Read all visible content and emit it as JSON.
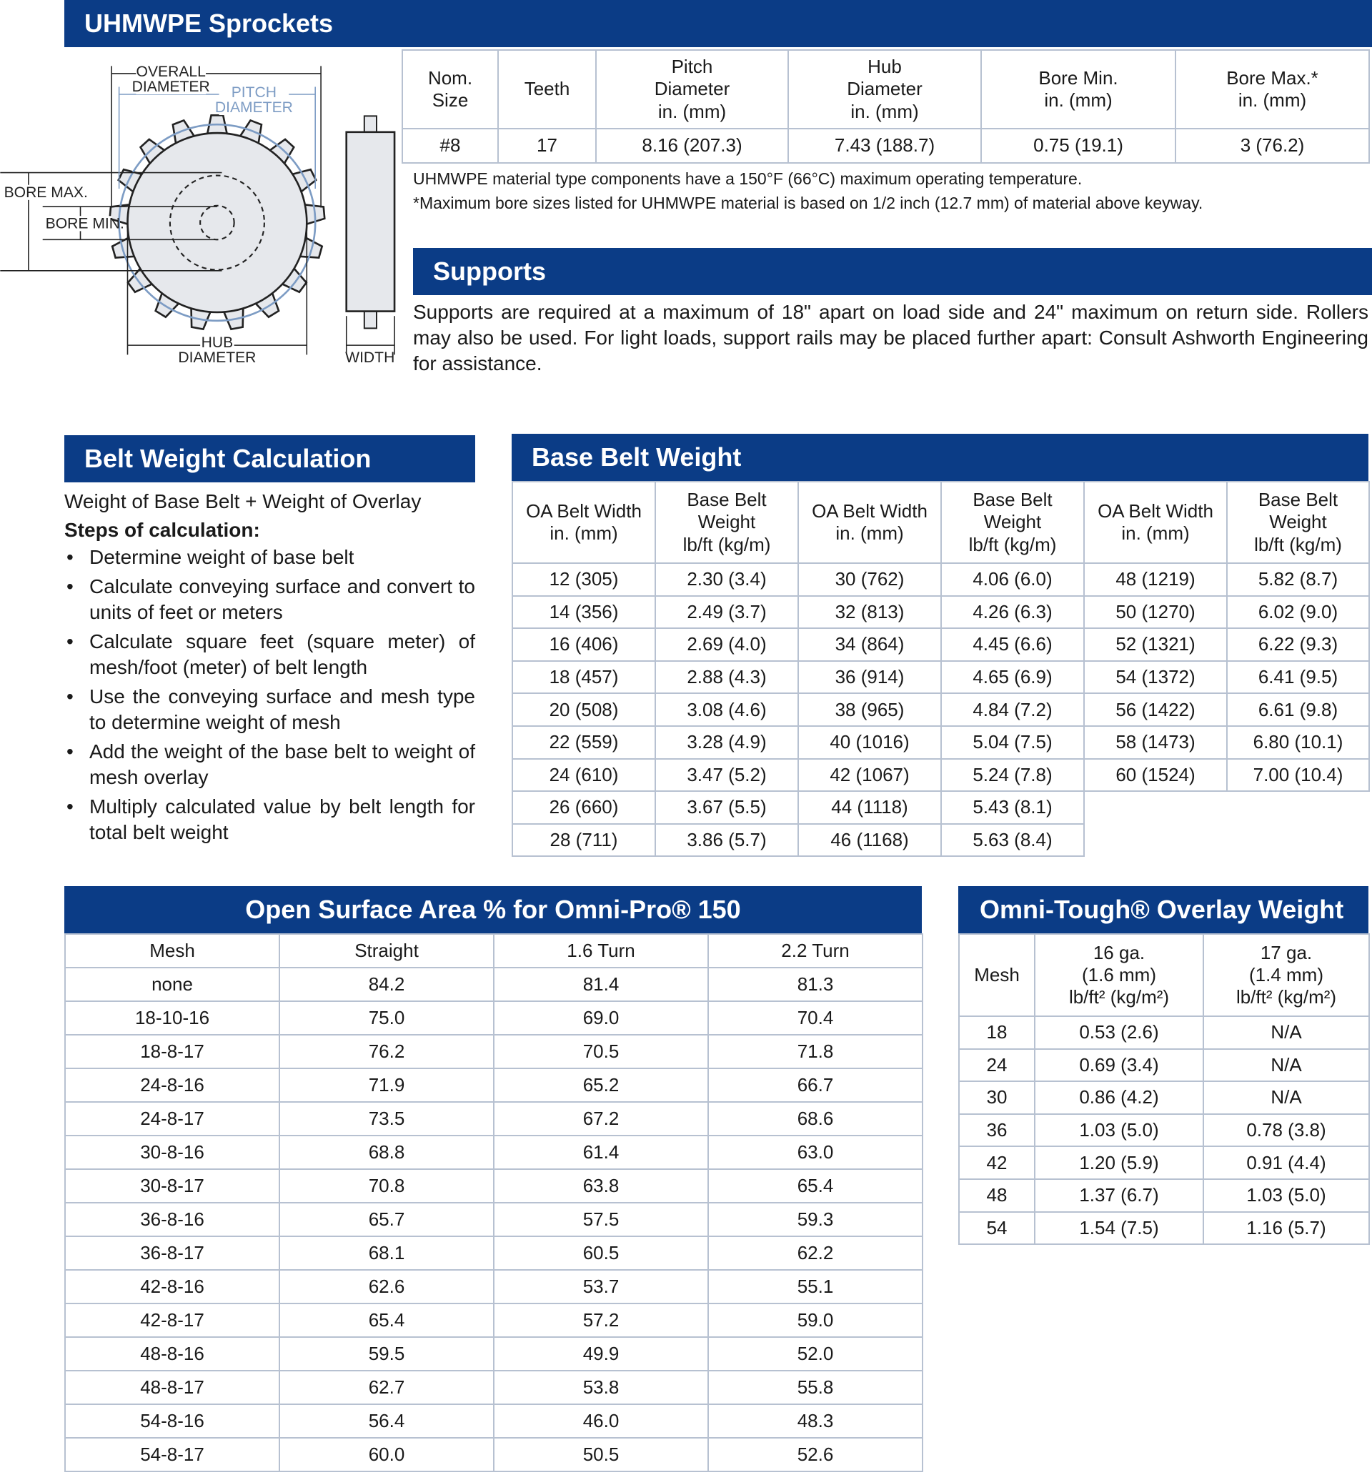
{
  "sprockets": {
    "title": "UHMWPE Sprockets",
    "diagram": {
      "overall_diameter": [
        "OVERALL",
        "DIAMETER"
      ],
      "pitch_diameter": [
        "PITCH",
        "DIAMETER"
      ],
      "bore_max": "BORE MAX.",
      "bore_min": "BORE MIN.",
      "hub_diameter": [
        "HUB",
        "DIAMETER"
      ],
      "width": "WIDTH"
    },
    "table": {
      "headers": [
        "Nom.\nSize",
        "Teeth",
        "Pitch\nDiameter\nin. (mm)",
        "Hub\nDiameter\nin. (mm)",
        "Bore Min.\nin. (mm)",
        "Bore Max.*\nin. (mm)"
      ],
      "rows": [
        [
          "#8",
          "17",
          "8.16 (207.3)",
          "7.43 (188.7)",
          "0.75 (19.1)",
          "3 (76.2)"
        ]
      ]
    },
    "notes": [
      "UHMWPE material type components have a 150°F (66°C) maximum operating temperature.",
      "*Maximum bore sizes listed for UHMWPE material is based on 1/2 inch (12.7 mm) of material above keyway."
    ]
  },
  "supports": {
    "title": "Supports",
    "text": "Supports are required at a maximum of 18\" apart on load side and 24\" maximum on return side. Rollers may also be used.  For light loads, support rails may be placed further apart:  Consult Ashworth Engineering for assistance."
  },
  "belt_weight_calculation": {
    "title": "Belt Weight Calculation",
    "formula": "Weight of Base Belt + Weight of Overlay",
    "steps_heading": "Steps of calculation:",
    "steps": [
      "Determine weight of base belt",
      "Calculate conveying surface and convert to units of feet or meters",
      "Calculate square feet (square meter) of mesh/foot (meter) of belt length",
      "Use the conveying surface and mesh type to determine weight of mesh",
      "Add the weight of the base belt to weight of mesh overlay",
      "Multiply calculated value by belt length for total belt weight"
    ]
  },
  "base_belt_weight": {
    "title": "Base Belt Weight",
    "headers": [
      "OA Belt Width\nin. (mm)",
      "Base Belt\nWeight\nlb/ft (kg/m)",
      "OA Belt Width\nin. (mm)",
      "Base Belt\nWeight\nlb/ft (kg/m)",
      "OA Belt Width\nin. (mm)",
      "Base Belt\nWeight\nlb/ft (kg/m)"
    ],
    "rows": [
      [
        "12 (305)",
        "2.30 (3.4)",
        "30 (762)",
        "4.06 (6.0)",
        "48 (1219)",
        "5.82 (8.7)"
      ],
      [
        "14 (356)",
        "2.49 (3.7)",
        "32 (813)",
        "4.26 (6.3)",
        "50 (1270)",
        "6.02 (9.0)"
      ],
      [
        "16 (406)",
        "2.69 (4.0)",
        "34 (864)",
        "4.45 (6.6)",
        "52 (1321)",
        "6.22 (9.3)"
      ],
      [
        "18 (457)",
        "2.88 (4.3)",
        "36 (914)",
        "4.65 (6.9)",
        "54 (1372)",
        "6.41 (9.5)"
      ],
      [
        "20 (508)",
        "3.08 (4.6)",
        "38 (965)",
        "4.84 (7.2)",
        "56 (1422)",
        "6.61 (9.8)"
      ],
      [
        "22 (559)",
        "3.28 (4.9)",
        "40 (1016)",
        "5.04 (7.5)",
        "58 (1473)",
        "6.80 (10.1)"
      ],
      [
        "24 (610)",
        "3.47 (5.2)",
        "42 (1067)",
        "5.24 (7.8)",
        "60 (1524)",
        "7.00 (10.4)"
      ],
      [
        "26 (660)",
        "3.67 (5.5)",
        "44 (1118)",
        "5.43 (8.1)"
      ],
      [
        "28 (711)",
        "3.86 (5.7)",
        "46 (1168)",
        "5.63 (8.4)"
      ]
    ]
  },
  "open_surface_area": {
    "title": "Open Surface Area % for Omni-Pro® 150",
    "headers": [
      "Mesh",
      "Straight",
      "1.6 Turn",
      "2.2 Turn"
    ],
    "rows": [
      [
        "none",
        "84.2",
        "81.4",
        "81.3"
      ],
      [
        "18-10-16",
        "75.0",
        "69.0",
        "70.4"
      ],
      [
        "18-8-17",
        "76.2",
        "70.5",
        "71.8"
      ],
      [
        "24-8-16",
        "71.9",
        "65.2",
        "66.7"
      ],
      [
        "24-8-17",
        "73.5",
        "67.2",
        "68.6"
      ],
      [
        "30-8-16",
        "68.8",
        "61.4",
        "63.0"
      ],
      [
        "30-8-17",
        "70.8",
        "63.8",
        "65.4"
      ],
      [
        "36-8-16",
        "65.7",
        "57.5",
        "59.3"
      ],
      [
        "36-8-17",
        "68.1",
        "60.5",
        "62.2"
      ],
      [
        "42-8-16",
        "62.6",
        "53.7",
        "55.1"
      ],
      [
        "42-8-17",
        "65.4",
        "57.2",
        "59.0"
      ],
      [
        "48-8-16",
        "59.5",
        "49.9",
        "52.0"
      ],
      [
        "48-8-17",
        "62.7",
        "53.8",
        "55.8"
      ],
      [
        "54-8-16",
        "56.4",
        "46.0",
        "48.3"
      ],
      [
        "54-8-17",
        "60.0",
        "50.5",
        "52.6"
      ]
    ]
  },
  "overlay_weight": {
    "title": "Omni-Tough® Overlay Weight",
    "headers": [
      "Mesh",
      "16 ga.\n(1.6 mm)\nlb/ft² (kg/m²)",
      "17 ga.\n(1.4 mm)\nlb/ft² (kg/m²)"
    ],
    "rows": [
      [
        "18",
        "0.53 (2.6)",
        "N/A"
      ],
      [
        "24",
        "0.69 (3.4)",
        "N/A"
      ],
      [
        "30",
        "0.86 (4.2)",
        "N/A"
      ],
      [
        "36",
        "1.03 (5.0)",
        "0.78 (3.8)"
      ],
      [
        "42",
        "1.20 (5.9)",
        "0.91 (4.4)"
      ],
      [
        "48",
        "1.37 (6.7)",
        "1.03 (5.0)"
      ],
      [
        "54",
        "1.54 (7.5)",
        "1.16 (5.7)"
      ]
    ]
  }
}
